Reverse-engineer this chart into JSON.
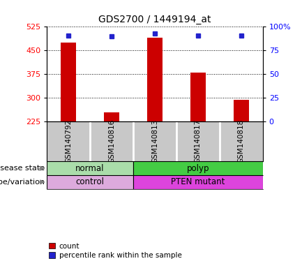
{
  "title": "GDS2700 / 1449194_at",
  "samples": [
    "GSM140792",
    "GSM140816",
    "GSM140813",
    "GSM140817",
    "GSM140818"
  ],
  "counts": [
    475,
    255,
    490,
    380,
    295
  ],
  "percentiles": [
    91,
    90,
    93,
    91,
    91
  ],
  "ylim_left": [
    225,
    525
  ],
  "yticks_left": [
    225,
    300,
    375,
    450,
    525
  ],
  "ylim_right": [
    0,
    100
  ],
  "yticks_right": [
    0,
    25,
    50,
    75,
    100
  ],
  "bar_color": "#cc0000",
  "dot_color": "#2222cc",
  "disease_state": [
    {
      "label": "normal",
      "span": [
        0,
        2
      ],
      "color": "#aaddaa"
    },
    {
      "label": "polyp",
      "span": [
        2,
        5
      ],
      "color": "#44cc44"
    }
  ],
  "genotype": [
    {
      "label": "control",
      "span": [
        0,
        2
      ],
      "color": "#ddaadd"
    },
    {
      "label": "PTEN mutant",
      "span": [
        2,
        5
      ],
      "color": "#dd44dd"
    }
  ],
  "disease_label": "disease state",
  "genotype_label": "genotype/variation",
  "legend_count": "count",
  "legend_percentile": "percentile rank within the sample",
  "background_color": "#ffffff",
  "plot_bg_color": "#ffffff",
  "xtick_area_color": "#c8c8c8"
}
